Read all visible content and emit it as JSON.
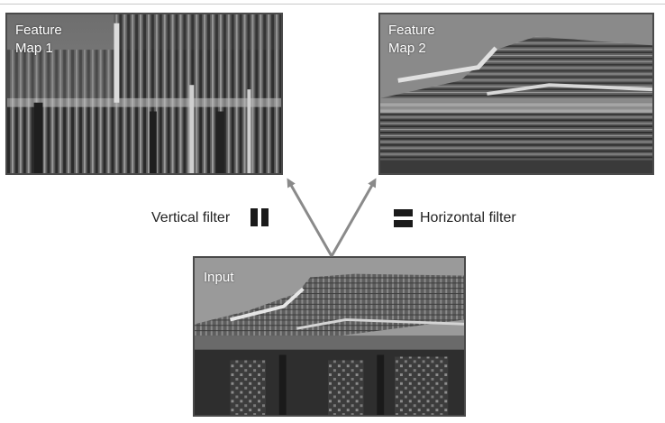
{
  "feature_map_1": {
    "label": "Feature\nMap 1"
  },
  "feature_map_2": {
    "label": "Feature\nMap 2"
  },
  "input": {
    "label": "Input"
  },
  "filters": {
    "vertical_label": "Vertical filter",
    "horizontal_label": "Horizontal filter"
  },
  "colors": {
    "arrow": "#8a8a8a",
    "frame": "#4a4a4a",
    "icon": "#1a1a1a"
  }
}
